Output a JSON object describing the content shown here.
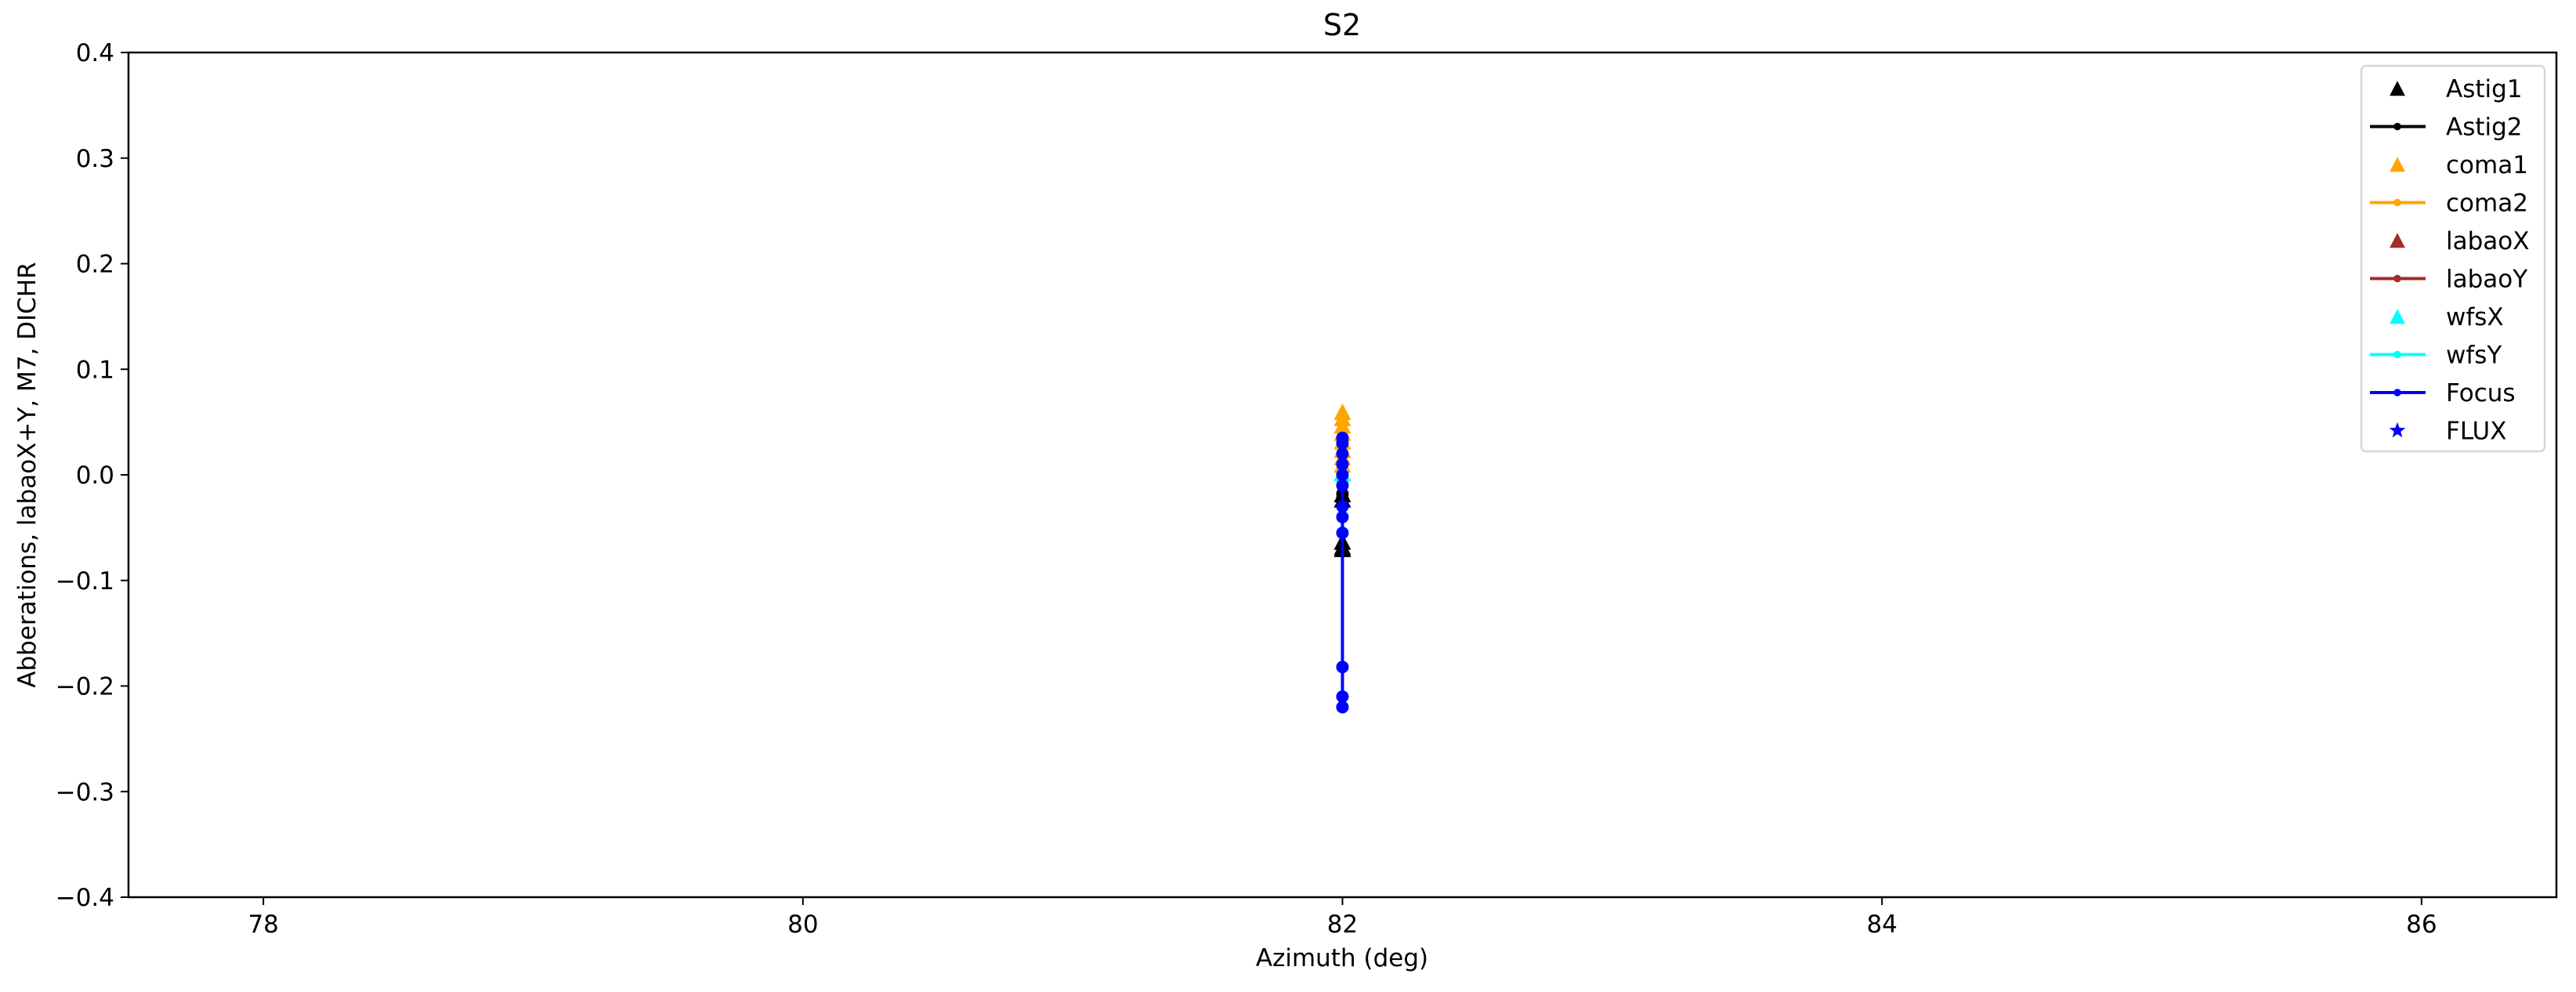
{
  "chart_data": {
    "type": "scatter",
    "title": "S2",
    "xlabel": "Azimuth (deg)",
    "ylabel": "Abberations, labaoX+Y, M7, DICHR",
    "xlim": [
      77.5,
      86.5
    ],
    "ylim": [
      -0.4,
      0.4
    ],
    "xticks": [
      78,
      80,
      82,
      84,
      86
    ],
    "yticks": [
      -0.4,
      -0.3,
      -0.2,
      -0.1,
      0.0,
      0.1,
      0.2,
      0.3,
      0.4
    ],
    "grid": false,
    "legend_position": "top-right",
    "series": [
      {
        "name": "Astig1",
        "color": "#000000",
        "marker": "triangle",
        "line": false,
        "x": [
          82,
          82,
          82,
          82,
          82
        ],
        "y": [
          -0.02,
          -0.025,
          -0.065,
          -0.07,
          -0.072
        ]
      },
      {
        "name": "Astig2",
        "color": "#000000",
        "marker": "dot",
        "line": true,
        "x": [
          82,
          82,
          82
        ],
        "y": [
          -0.018,
          -0.022,
          -0.025
        ]
      },
      {
        "name": "coma1",
        "color": "#ffa500",
        "marker": "triangle",
        "line": false,
        "x": [
          82,
          82,
          82,
          82,
          82,
          82,
          82,
          82,
          82
        ],
        "y": [
          0.058,
          0.052,
          0.045,
          0.038,
          0.03,
          0.022,
          0.015,
          0.008,
          0.0
        ]
      },
      {
        "name": "coma2",
        "color": "#ffa500",
        "marker": "dot",
        "line": true,
        "x": [
          82,
          82,
          82
        ],
        "y": [
          0.01,
          0.0,
          -0.005
        ]
      },
      {
        "name": "labaoX",
        "color": "#a52a2a",
        "marker": "triangle",
        "line": false,
        "x": [],
        "y": []
      },
      {
        "name": "labaoY",
        "color": "#a52a2a",
        "marker": "dot",
        "line": true,
        "x": [],
        "y": []
      },
      {
        "name": "wfsX",
        "color": "#00ffff",
        "marker": "triangle",
        "line": false,
        "x": [
          82
        ],
        "y": [
          0.0
        ]
      },
      {
        "name": "wfsY",
        "color": "#00ffff",
        "marker": "dot",
        "line": true,
        "x": [],
        "y": []
      },
      {
        "name": "Focus",
        "color": "#0000ff",
        "marker": "dot",
        "line": true,
        "x": [
          82,
          82,
          82,
          82,
          82,
          82,
          82,
          82,
          82,
          82,
          82,
          82
        ],
        "y": [
          0.035,
          0.03,
          0.02,
          0.01,
          0.0,
          -0.01,
          -0.03,
          -0.04,
          -0.055,
          -0.182,
          -0.21,
          -0.22
        ]
      },
      {
        "name": "FLUX",
        "color": "#0000ff",
        "marker": "star",
        "line": false,
        "x": [],
        "y": []
      }
    ]
  }
}
